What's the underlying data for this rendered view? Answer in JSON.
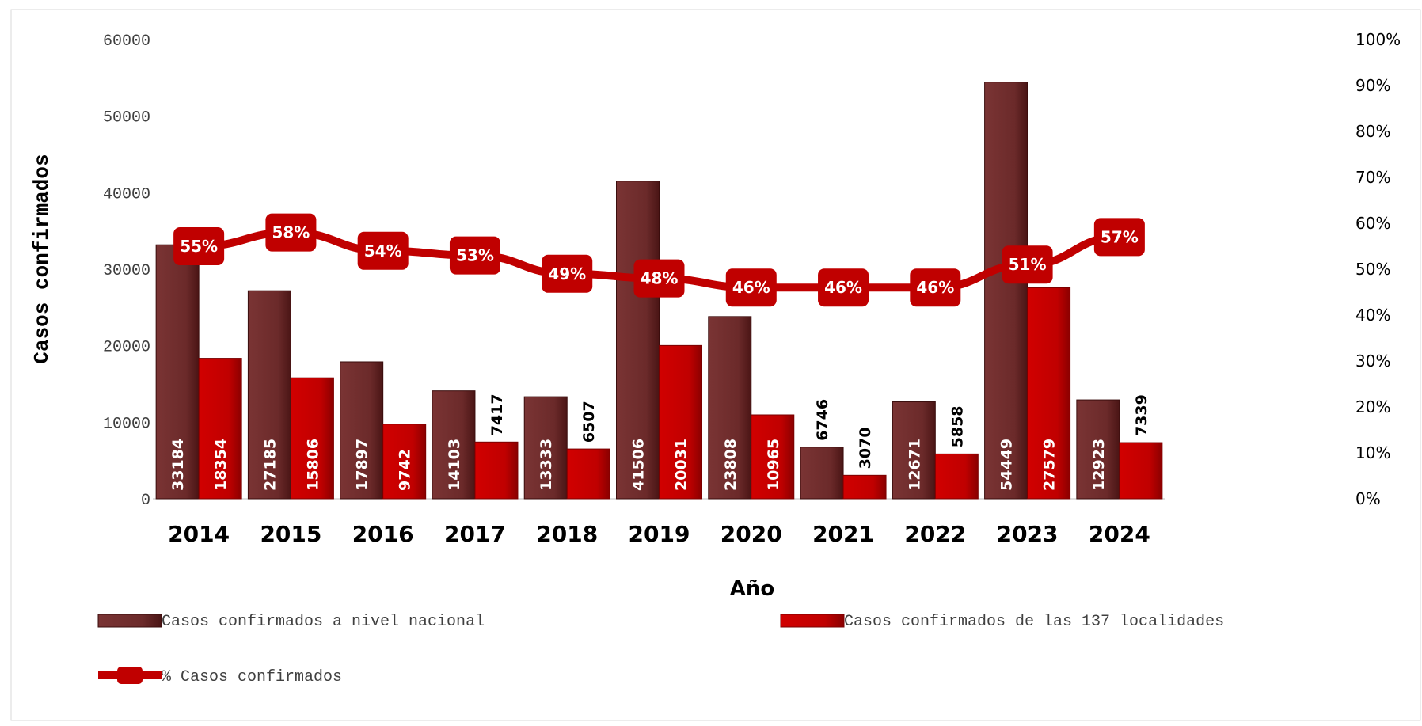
{
  "chart_data": {
    "type": "bar",
    "categories": [
      "2014",
      "2015",
      "2016",
      "2017",
      "2018",
      "2019",
      "2020",
      "2021",
      "2022",
      "2023",
      "2024"
    ],
    "series": [
      {
        "name": "Casos confirmados a nivel nacional",
        "kind": "bar",
        "axis": "left",
        "color": "#6b2a2a",
        "values": [
          33184,
          27185,
          17897,
          14103,
          13333,
          41506,
          23808,
          6746,
          12671,
          54449,
          12923
        ]
      },
      {
        "name": "Casos confirmados de las 137 localidades",
        "kind": "bar",
        "axis": "left",
        "color": "#c00000",
        "values": [
          18354,
          15806,
          9742,
          7417,
          6507,
          20031,
          10965,
          3070,
          5858,
          27579,
          7339
        ]
      },
      {
        "name": "% Casos confirmados",
        "kind": "line",
        "axis": "right",
        "color": "#c00000",
        "values": [
          55,
          58,
          54,
          53,
          49,
          48,
          46,
          46,
          46,
          51,
          57
        ],
        "labels": [
          "55%",
          "58%",
          "54%",
          "53%",
          "49%",
          "48%",
          "46%",
          "46%",
          "46%",
          "51%",
          "57%"
        ]
      }
    ],
    "xlabel": "Año",
    "ylabel": "Casos confirmados",
    "ylim": [
      0,
      60000
    ],
    "yticks": [
      "0",
      "10000",
      "20000",
      "30000",
      "40000",
      "50000",
      "60000"
    ],
    "y2lim": [
      0,
      100
    ],
    "y2ticks": [
      "0%",
      "10%",
      "20%",
      "30%",
      "40%",
      "50%",
      "60%",
      "70%",
      "80%",
      "90%",
      "100%"
    ],
    "grid": false,
    "legend_position": "bottom"
  }
}
